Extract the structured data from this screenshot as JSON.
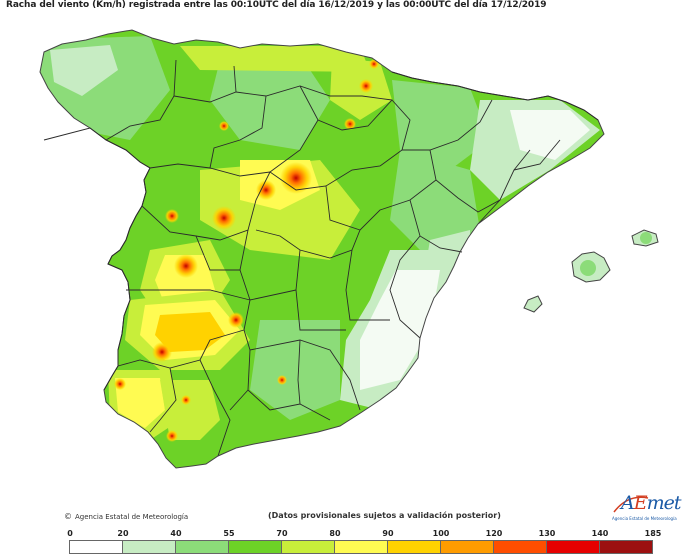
{
  "map": {
    "title": "Racha del viento (Km/h) registrada entre las 00:10UTC del día 16/12/2019 y las 00:00UTC del día 17/12/2019",
    "region": "Península Ibérica y Baleares",
    "provisional_note": "(Datos provisionales sujetos a validación posterior)",
    "credit": "Agencia Estatal de Meteorología",
    "copyright_symbol": "©",
    "logo": {
      "name": "AEMet",
      "subtitle": "Agencia Estatal de Meteorología"
    }
  },
  "legend": {
    "ticks": [
      "0",
      "20",
      "40",
      "55",
      "70",
      "80",
      "90",
      "100",
      "120",
      "130",
      "140",
      "185"
    ],
    "classes": [
      {
        "from": 0,
        "to": 20,
        "color": "#ffffff"
      },
      {
        "from": 20,
        "to": 40,
        "color": "#c7ecc3"
      },
      {
        "from": 40,
        "to": 55,
        "color": "#8cdc79"
      },
      {
        "from": 55,
        "to": 70,
        "color": "#6dd227"
      },
      {
        "from": 70,
        "to": 80,
        "color": "#c8ee3a"
      },
      {
        "from": 80,
        "to": 90,
        "color": "#fffb52"
      },
      {
        "from": 90,
        "to": 100,
        "color": "#ffd200"
      },
      {
        "from": 100,
        "to": 120,
        "color": "#ff9c00"
      },
      {
        "from": 120,
        "to": 130,
        "color": "#ff4e00"
      },
      {
        "from": 130,
        "to": 140,
        "color": "#e60000"
      },
      {
        "from": 140,
        "to": 185,
        "color": "#9c1010"
      }
    ]
  },
  "colors": {
    "border": "#2b2b2b",
    "coast": "#444444",
    "aemet_blue": "#1b5aa6",
    "aemet_red": "#d33f22"
  }
}
